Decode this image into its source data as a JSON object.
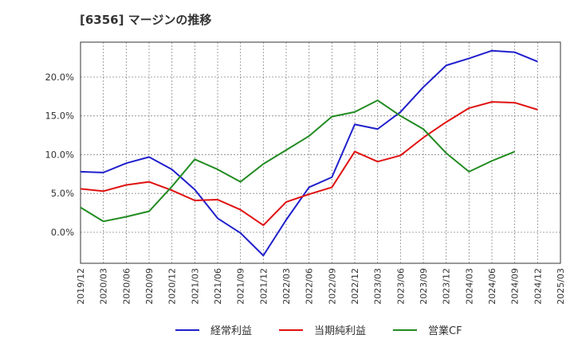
{
  "chart_data": {
    "type": "line",
    "title": "[6356]  マージンの推移",
    "x": [
      "2019/12",
      "2020/03",
      "2020/06",
      "2020/09",
      "2020/12",
      "2021/03",
      "2021/06",
      "2021/09",
      "2021/12",
      "2022/03",
      "2022/06",
      "2022/09",
      "2022/12",
      "2023/03",
      "2023/06",
      "2023/09",
      "2023/12",
      "2024/03",
      "2024/06",
      "2024/09",
      "2024/12",
      "2025/03"
    ],
    "ylim": [
      -4.0,
      24.5
    ],
    "yticks": [
      0,
      5,
      10,
      15,
      20
    ],
    "ytick_labels": [
      "0.0%",
      "5.0%",
      "10.0%",
      "15.0%",
      "20.0%"
    ],
    "grid": true,
    "legend_position": "bottom",
    "series": [
      {
        "name": "経常利益",
        "color": "#1f1fcc",
        "values": [
          7.8,
          7.7,
          8.9,
          9.7,
          8.1,
          5.5,
          1.8,
          -0.1,
          -3.0,
          1.6,
          5.8,
          7.1,
          13.9,
          13.3,
          15.5,
          18.7,
          21.5,
          22.4,
          23.4,
          23.2,
          22.0,
          null
        ]
      },
      {
        "name": "当期純利益",
        "color": "#e01010",
        "values": [
          5.6,
          5.3,
          6.1,
          6.5,
          5.4,
          4.1,
          4.2,
          2.9,
          0.9,
          3.9,
          4.9,
          5.8,
          10.4,
          9.1,
          9.9,
          12.2,
          14.2,
          16.0,
          16.8,
          16.7,
          15.8,
          null
        ]
      },
      {
        "name": "営業CF",
        "color": "#228b22",
        "values": [
          3.2,
          1.4,
          2.0,
          2.7,
          5.9,
          9.4,
          8.1,
          6.5,
          8.8,
          10.6,
          12.4,
          14.9,
          15.5,
          17.0,
          15.0,
          13.3,
          10.2,
          7.8,
          9.2,
          10.4,
          null,
          null
        ]
      }
    ]
  }
}
